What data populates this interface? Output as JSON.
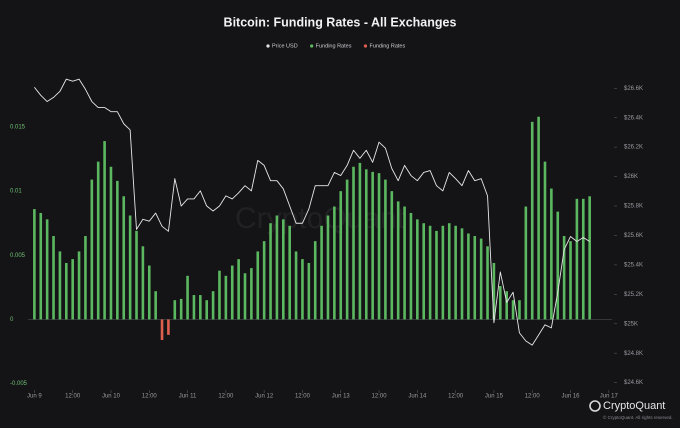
{
  "chart_data": {
    "type": "bar",
    "title": "Bitcoin: Funding Rates - All Exchanges",
    "watermark": "CryptoQuant",
    "brand": "CryptoQuant",
    "copyright": "© CryptoQuant. All rights reserved.",
    "x": [
      0,
      2,
      4,
      6,
      8,
      10,
      12,
      14,
      16,
      18,
      20,
      22,
      24,
      26,
      28,
      30,
      32,
      34,
      36,
      38,
      40,
      42,
      44,
      46,
      48,
      50,
      52,
      54,
      56,
      58,
      60,
      62,
      64,
      66,
      68,
      70,
      72,
      74,
      76,
      78,
      80,
      82,
      84,
      86,
      88,
      90,
      92,
      94,
      96,
      98,
      100,
      102,
      104,
      106,
      108,
      110,
      112,
      114,
      116,
      118,
      120,
      122,
      124,
      126,
      128,
      130,
      132,
      134,
      136,
      138,
      140,
      142,
      144,
      146,
      148,
      150,
      152,
      154,
      156,
      158,
      160,
      162,
      164,
      166,
      168,
      170,
      172,
      174
    ],
    "xlim": [
      -2,
      181
    ],
    "xticks": [
      {
        "value": 0,
        "label": "Jun 9"
      },
      {
        "value": 12,
        "label": "12:00"
      },
      {
        "value": 24,
        "label": "Jun 10"
      },
      {
        "value": 36,
        "label": "12:00"
      },
      {
        "value": 48,
        "label": "Jun 11"
      },
      {
        "value": 60,
        "label": "12:00"
      },
      {
        "value": 72,
        "label": "Jun 12"
      },
      {
        "value": 84,
        "label": "12:00"
      },
      {
        "value": 96,
        "label": "Jun 13"
      },
      {
        "value": 108,
        "label": "12:00"
      },
      {
        "value": 120,
        "label": "Jun 14"
      },
      {
        "value": 132,
        "label": "12:00"
      },
      {
        "value": 144,
        "label": "Jun 15"
      },
      {
        "value": 156,
        "label": "12:00"
      },
      {
        "value": 168,
        "label": "Jun 16"
      },
      {
        "value": 180,
        "label": "Jun 17"
      }
    ],
    "ylim": [
      -0.0055,
      0.021
    ],
    "yticks": [
      0.015,
      0.01,
      0.005,
      0,
      -0.005
    ],
    "y2lim": [
      24550,
      26860
    ],
    "y2ticks": [
      {
        "value": 26600,
        "label": "$26.6K"
      },
      {
        "value": 26400,
        "label": "$26.4K"
      },
      {
        "value": 26200,
        "label": "$26.2K"
      },
      {
        "value": 26000,
        "label": "$26K"
      },
      {
        "value": 25800,
        "label": "$25.8K"
      },
      {
        "value": 25600,
        "label": "$25.6K"
      },
      {
        "value": 25400,
        "label": "$25.4K"
      },
      {
        "value": 25200,
        "label": "$25.2K"
      },
      {
        "value": 25000,
        "label": "$25K"
      },
      {
        "value": 24800,
        "label": "$24.8K"
      },
      {
        "value": 24600,
        "label": "$24.6K"
      }
    ],
    "series": [
      {
        "name": "Price USD",
        "type": "line",
        "axis": "y2",
        "color": "#e6e6e6",
        "values": [
          26607,
          26552,
          26510,
          26538,
          26579,
          26662,
          26648,
          26662,
          26593,
          26510,
          26469,
          26469,
          26441,
          26441,
          26359,
          26317,
          25641,
          25710,
          25697,
          25752,
          25662,
          25628,
          25986,
          25800,
          25848,
          25848,
          25903,
          25800,
          25766,
          25800,
          25869,
          25848,
          25890,
          25938,
          25903,
          26110,
          26076,
          25972,
          25972,
          25917,
          25800,
          25683,
          25683,
          25779,
          25938,
          25938,
          25938,
          26028,
          26007,
          26076,
          26179,
          26124,
          26179,
          26097,
          26234,
          26193,
          26055,
          25972,
          26076,
          26007,
          25972,
          26028,
          26041,
          25938,
          25903,
          26028,
          25986,
          25938,
          26041,
          25972,
          25986,
          25869,
          25007,
          25352,
          25145,
          25214,
          24938,
          24883,
          24855,
          24924,
          24993,
          24972,
          25214,
          25503,
          25593,
          25559,
          25586,
          25559
        ]
      },
      {
        "name": "Funding Rates",
        "type": "bar",
        "color": "#5cb860",
        "values": [
          0.0086,
          0.0083,
          0.0078,
          0.0065,
          0.0053,
          0.0044,
          0.0047,
          0.0053,
          0.0065,
          0.0109,
          0.0123,
          0.0139,
          0.0119,
          0.0108,
          0.0096,
          0.0081,
          0.0069,
          0.0057,
          0.0042,
          0.0022,
          null,
          null,
          0.0015,
          0.0016,
          0.0034,
          0.0019,
          0.0019,
          0.0015,
          0.0022,
          0.0038,
          0.0034,
          0.0042,
          0.0047,
          0.0036,
          0.004,
          0.0053,
          0.0061,
          0.0075,
          0.0081,
          0.0078,
          0.0073,
          0.0053,
          0.0047,
          0.0044,
          0.0061,
          0.0073,
          0.0081,
          0.0088,
          0.01,
          0.0109,
          0.0119,
          0.0122,
          0.0117,
          0.0115,
          0.0114,
          0.0109,
          0.01,
          0.0092,
          0.0088,
          0.0083,
          0.0078,
          0.0075,
          0.0073,
          0.0069,
          0.0073,
          0.0075,
          0.0073,
          0.0071,
          0.0067,
          0.0065,
          0.0063,
          0.0057,
          0.0044,
          0.0026,
          0.0022,
          0.0015,
          0.0015,
          0.0088,
          0.0154,
          0.0158,
          0.0123,
          0.0102,
          0.0084,
          0.0065,
          0.0061,
          0.0094,
          0.0094,
          0.0096
        ]
      },
      {
        "name": "Funding Rates",
        "type": "bar",
        "color": "#e0604f",
        "values": [
          null,
          null,
          null,
          null,
          null,
          null,
          null,
          null,
          null,
          null,
          null,
          null,
          null,
          null,
          null,
          null,
          null,
          null,
          null,
          null,
          -0.0016,
          -0.0012,
          null,
          null,
          null,
          null,
          null,
          null,
          null,
          null,
          null,
          null,
          null,
          null,
          null,
          null,
          null,
          null,
          null,
          null,
          null,
          null,
          null,
          null,
          null,
          null,
          null,
          null,
          null,
          null,
          null,
          null,
          null,
          null,
          null,
          null,
          null,
          null,
          null,
          null,
          null,
          null,
          null,
          null,
          null,
          null,
          null,
          null,
          null,
          null,
          null,
          null,
          null,
          null,
          null,
          null,
          null,
          null,
          null,
          null,
          null,
          null,
          null,
          null,
          null,
          null,
          null,
          null
        ]
      }
    ]
  }
}
